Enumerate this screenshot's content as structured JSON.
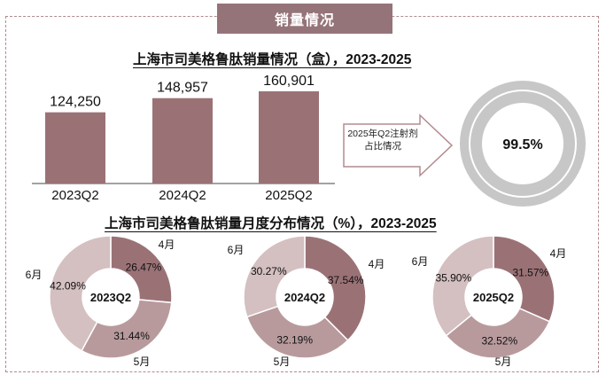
{
  "header": {
    "label": "销量情况"
  },
  "colors": {
    "bar": "#9a7276",
    "ring_bg": "#c7c7c7",
    "ring_fg": "#a8a8a8",
    "seg_4": "#9a7276",
    "seg_5": "#b89a9d",
    "seg_6": "#d4bfc1",
    "arrow_border": "#b38c90"
  },
  "chart_data": [
    {
      "type": "bar",
      "title": "上海市司美格鲁肽销量情况（盒），2023-2025",
      "categories": [
        "2023Q2",
        "2024Q2",
        "2025Q2"
      ],
      "values": [
        124250,
        148957,
        160901
      ],
      "value_labels": [
        "124,250",
        "148,957",
        "160,901"
      ],
      "xlabel": "",
      "ylabel": ""
    },
    {
      "type": "pie",
      "title": "",
      "callout": "2025年Q2注射剂占比情况",
      "center_label": "99.5%",
      "values": [
        99.5,
        0.5
      ]
    },
    {
      "type": "pie",
      "title": "上海市司美格鲁肽销量月度分布情况（%），2023-2025",
      "donuts": [
        {
          "center_label": "2023Q2",
          "months": [
            "4月",
            "5月",
            "6月"
          ],
          "values": [
            26.47,
            31.44,
            42.09
          ],
          "value_labels": [
            "26.47%",
            "31.44%",
            "42.09%"
          ]
        },
        {
          "center_label": "2024Q2",
          "months": [
            "4月",
            "5月",
            "6月"
          ],
          "values": [
            37.54,
            32.19,
            30.27
          ],
          "value_labels": [
            "37.54%",
            "32.19%",
            "30.27%"
          ]
        },
        {
          "center_label": "2025Q2",
          "months": [
            "4月",
            "5月",
            "6月"
          ],
          "values": [
            31.57,
            32.52,
            35.9
          ],
          "value_labels": [
            "31.57%",
            "32.52%",
            "35.90%"
          ]
        }
      ]
    }
  ]
}
